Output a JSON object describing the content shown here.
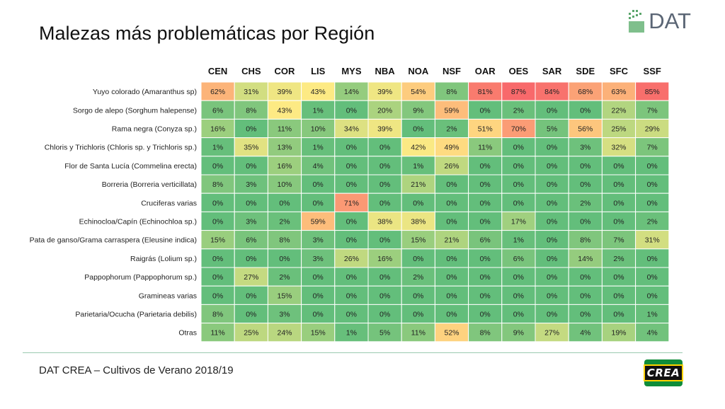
{
  "header": {
    "title": "Malezas más problemáticas por Región",
    "brand_logo_text": "DAT"
  },
  "footer": {
    "caption": "DAT CREA – Cultivos de Verano 2018/19",
    "crea_logo_text": "CREA"
  },
  "colors": {
    "low": "#63be7b",
    "mid": "#ffeb84",
    "high": "#f8696b",
    "divider": "#9bc9b0",
    "crea_green": "#0f8c3a"
  },
  "chart_data": {
    "type": "heatmap",
    "title": "Malezas más problemáticas por Región",
    "columns": [
      "CEN",
      "CHS",
      "COR",
      "LIS",
      "MYS",
      "NBA",
      "NOA",
      "NSF",
      "OAR",
      "OES",
      "SAR",
      "SDE",
      "SFC",
      "SSF"
    ],
    "rows": [
      {
        "label": "Yuyo colorado (Amaranthus sp)",
        "values": [
          62,
          31,
          39,
          43,
          14,
          39,
          54,
          8,
          81,
          87,
          84,
          68,
          63,
          85
        ]
      },
      {
        "label": "Sorgo de alepo (Sorghum halepense)",
        "values": [
          6,
          8,
          43,
          1,
          0,
          20,
          9,
          59,
          0,
          2,
          0,
          0,
          22,
          7
        ]
      },
      {
        "label": "Rama negra (Conyza sp.)",
        "values": [
          16,
          0,
          11,
          10,
          34,
          39,
          0,
          2,
          51,
          70,
          5,
          56,
          25,
          29
        ]
      },
      {
        "label": "Chloris y Trichloris (Chloris sp. y Trichloris sp.)",
        "values": [
          1,
          35,
          13,
          1,
          0,
          0,
          42,
          49,
          11,
          0,
          0,
          3,
          32,
          7
        ]
      },
      {
        "label": "Flor de Santa Lucía (Commelina erecta)",
        "values": [
          0,
          0,
          16,
          4,
          0,
          0,
          1,
          26,
          0,
          0,
          0,
          0,
          0,
          0
        ]
      },
      {
        "label": "Borreria (Borreria verticillata)",
        "values": [
          8,
          3,
          10,
          0,
          0,
          0,
          21,
          0,
          0,
          0,
          0,
          0,
          0,
          0
        ]
      },
      {
        "label": "Cruciferas varias",
        "values": [
          0,
          0,
          0,
          0,
          71,
          0,
          0,
          0,
          0,
          0,
          0,
          2,
          0,
          0
        ]
      },
      {
        "label": "Echinocloa/Capín (Echinochloa sp.)",
        "values": [
          0,
          3,
          2,
          59,
          0,
          38,
          38,
          0,
          0,
          17,
          0,
          0,
          0,
          2
        ]
      },
      {
        "label": "Pata de ganso/Grama carraspera (Eleusine indica)",
        "values": [
          15,
          6,
          8,
          3,
          0,
          0,
          15,
          21,
          6,
          1,
          0,
          8,
          7,
          31
        ]
      },
      {
        "label": "Raigrás (Lolium sp.)",
        "values": [
          0,
          0,
          0,
          3,
          26,
          16,
          0,
          0,
          0,
          6,
          0,
          14,
          2,
          0
        ]
      },
      {
        "label": "Pappophorum (Pappophorum sp.)",
        "values": [
          0,
          27,
          2,
          0,
          0,
          0,
          2,
          0,
          0,
          0,
          0,
          0,
          0,
          0
        ]
      },
      {
        "label": "Gramineas varias",
        "values": [
          0,
          0,
          15,
          0,
          0,
          0,
          0,
          0,
          0,
          0,
          0,
          0,
          0,
          0
        ]
      },
      {
        "label": "Parietaria/Ocucha (Parietaria debilis)",
        "values": [
          8,
          0,
          3,
          0,
          0,
          0,
          0,
          0,
          0,
          0,
          0,
          0,
          0,
          1
        ]
      },
      {
        "label": "Otras",
        "values": [
          11,
          25,
          24,
          15,
          1,
          5,
          11,
          52,
          8,
          9,
          27,
          4,
          19,
          4
        ]
      }
    ],
    "value_suffix": "%",
    "color_scale": [
      "low-green",
      "mid-yellow",
      "high-red"
    ]
  }
}
